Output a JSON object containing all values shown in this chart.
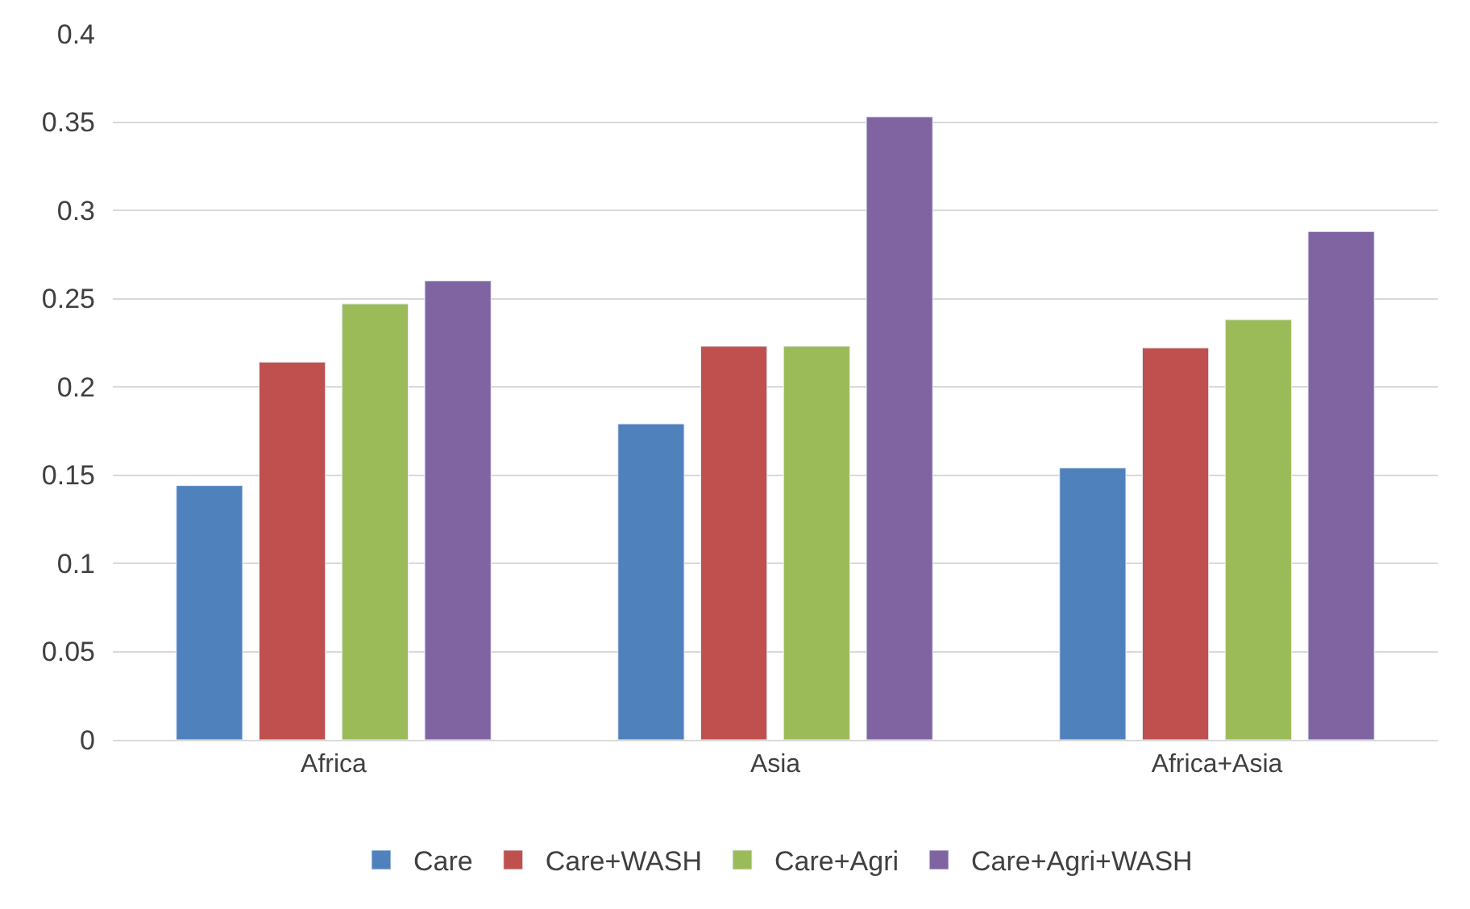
{
  "chart_data": {
    "type": "bar",
    "categories": [
      "Africa",
      "Asia",
      "Africa+Asia"
    ],
    "series": [
      {
        "name": "Care",
        "color": "#4f81bd",
        "values": [
          0.144,
          0.179,
          0.154
        ]
      },
      {
        "name": "Care+WASH",
        "color": "#c0504d",
        "values": [
          0.214,
          0.223,
          0.222
        ]
      },
      {
        "name": "Care+Agri",
        "color": "#9bbb59",
        "values": [
          0.247,
          0.223,
          0.238
        ]
      },
      {
        "name": "Care+Agri+WASH",
        "color": "#8064a2",
        "values": [
          0.26,
          0.353,
          0.288
        ]
      }
    ],
    "ylim": [
      0,
      0.4
    ],
    "yticks": [
      0,
      0.05,
      0.1,
      0.15,
      0.2,
      0.25,
      0.3,
      0.35,
      0.4
    ],
    "grid": "y",
    "legend": "bottom"
  }
}
